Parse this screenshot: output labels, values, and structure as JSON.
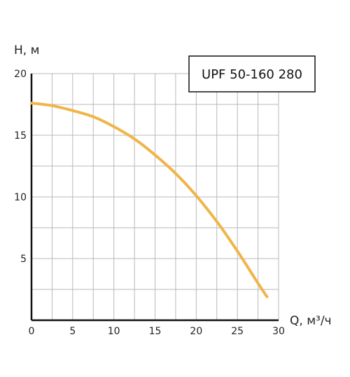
{
  "chart_data": {
    "type": "line",
    "title": "",
    "xlabel": "Q, м³/ч",
    "ylabel": "H, м",
    "xlim": [
      0,
      30
    ],
    "ylim": [
      0,
      20
    ],
    "x_ticks": [
      0,
      5,
      10,
      15,
      20,
      25,
      30
    ],
    "y_ticks": [
      5,
      10,
      15,
      20
    ],
    "grid": true,
    "legend_placement": "top-right",
    "series": [
      {
        "name": "UPF 50-160 280",
        "color": "#f0b54a",
        "x": [
          0,
          2.5,
          5,
          7.5,
          10,
          12.5,
          15,
          17.5,
          20,
          22.5,
          25,
          27.5,
          28.6
        ],
        "y": [
          17.6,
          17.4,
          17.0,
          16.5,
          15.7,
          14.7,
          13.4,
          11.9,
          10.1,
          8.0,
          5.6,
          3.0,
          1.9
        ]
      }
    ]
  }
}
